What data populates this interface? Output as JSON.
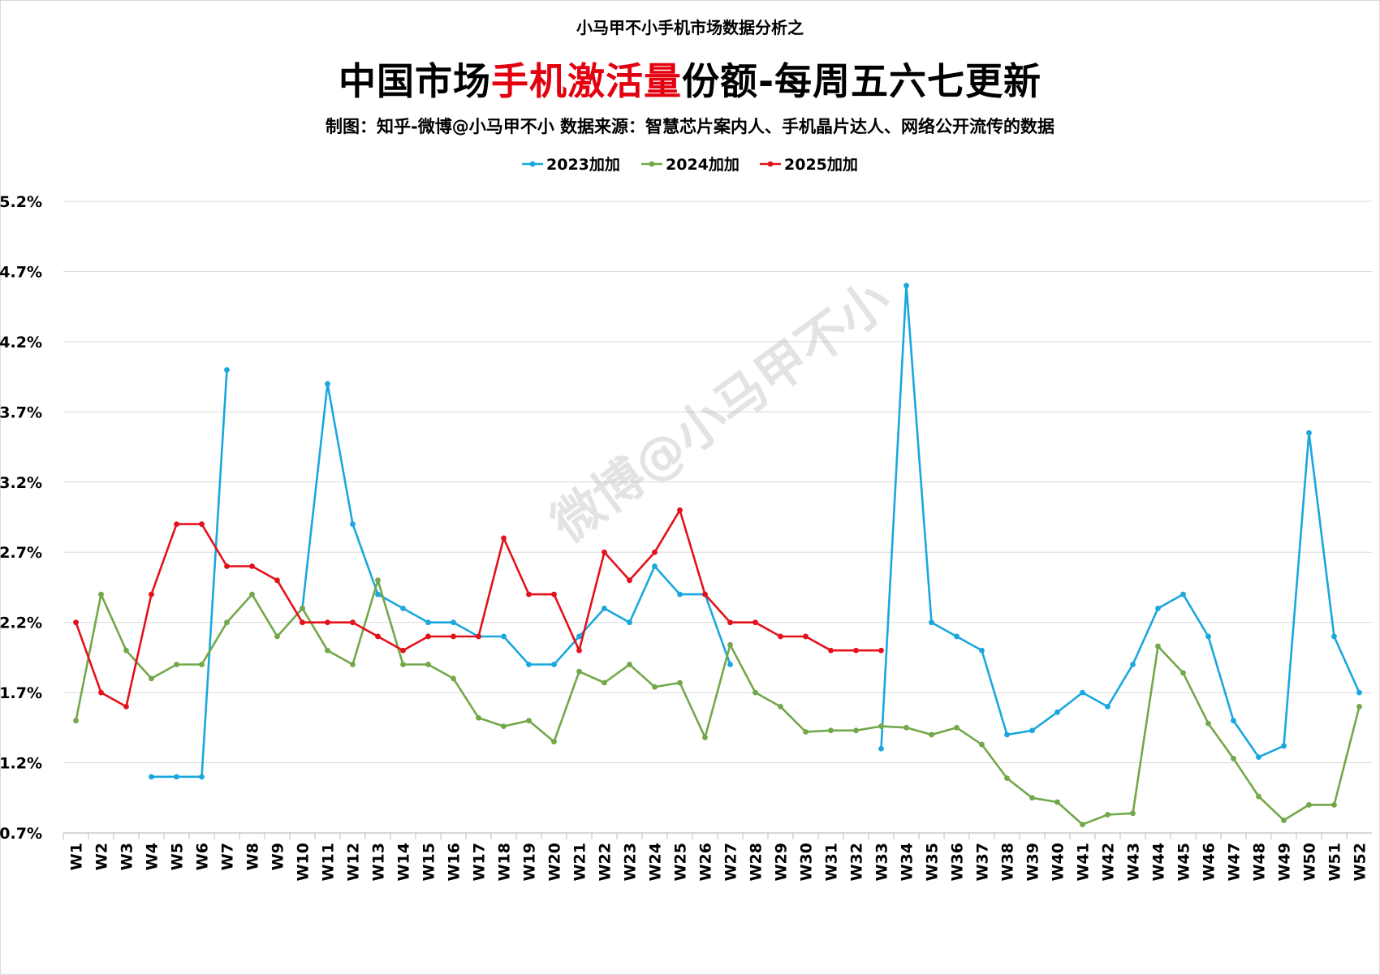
{
  "header": {
    "supertitle": "小马甲不小手机市场数据分析之",
    "title_part1": "中国市场",
    "title_highlight": "手机激活量",
    "title_part2": "份额-每周五六七更新",
    "credit": "制图：知乎-微博@小马甲不小  数据来源：智慧芯片案内人、手机晶片达人、网络公开流传的数据"
  },
  "watermark": "微博@小马甲不小",
  "colors": {
    "s2023": "#1aa7dd",
    "s2024": "#72a84a",
    "s2025": "#e3111b",
    "grid": "#d9d9d9"
  },
  "chart_data": {
    "type": "line",
    "title": "中国市场手机激活量份额-每周五六七更新",
    "ylim": [
      0.7,
      5.2
    ],
    "yticks": [
      "0.7%",
      "1.2%",
      "1.7%",
      "2.2%",
      "2.7%",
      "3.2%",
      "3.7%",
      "4.2%",
      "4.7%",
      "5.2%"
    ],
    "ytick_values": [
      0.7,
      1.2,
      1.7,
      2.2,
      2.7,
      3.2,
      3.7,
      4.2,
      4.7,
      5.2
    ],
    "grid": true,
    "legend_position": "top-center",
    "categories": [
      "W1",
      "W2",
      "W3",
      "W4",
      "W5",
      "W6",
      "W7",
      "W8",
      "W9",
      "W10",
      "W11",
      "W12",
      "W13",
      "W14",
      "W15",
      "W16",
      "W17",
      "W18",
      "W19",
      "W20",
      "W21",
      "W22",
      "W23",
      "W24",
      "W25",
      "W26",
      "W27",
      "W28",
      "W29",
      "W30",
      "W31",
      "W32",
      "W33",
      "W34",
      "W35",
      "W36",
      "W37",
      "W38",
      "W39",
      "W40",
      "W41",
      "W42",
      "W43",
      "W44",
      "W45",
      "W46",
      "W47",
      "W48",
      "W49",
      "W50",
      "W51",
      "W52"
    ],
    "series": [
      {
        "name": "2023加加",
        "color": "#1aa7dd",
        "values": [
          null,
          null,
          null,
          1.1,
          1.1,
          1.1,
          4.0,
          null,
          null,
          2.3,
          3.9,
          2.9,
          2.4,
          2.3,
          2.2,
          2.2,
          2.1,
          2.1,
          1.9,
          1.9,
          2.1,
          2.3,
          2.2,
          2.6,
          2.4,
          2.4,
          1.9,
          null,
          null,
          null,
          null,
          null,
          1.3,
          4.6,
          2.2,
          2.1,
          2.0,
          1.4,
          1.43,
          1.56,
          1.7,
          1.6,
          1.9,
          2.3,
          2.4,
          2.1,
          1.5,
          1.24,
          1.32,
          3.55,
          2.1,
          1.7
        ]
      },
      {
        "name": "2024加加",
        "color": "#72a84a",
        "values": [
          1.5,
          2.4,
          2.0,
          1.8,
          1.9,
          1.9,
          2.2,
          2.4,
          2.1,
          2.3,
          2.0,
          1.9,
          2.5,
          1.9,
          1.9,
          1.8,
          1.52,
          1.46,
          1.5,
          1.35,
          1.85,
          1.77,
          1.9,
          1.74,
          1.77,
          1.38,
          2.04,
          1.7,
          1.6,
          1.42,
          1.43,
          1.43,
          1.46,
          1.45,
          1.4,
          1.45,
          1.33,
          1.09,
          0.95,
          0.92,
          0.76,
          0.83,
          0.84,
          2.03,
          1.84,
          1.48,
          1.23,
          0.96,
          0.79,
          0.9,
          0.9,
          1.6
        ]
      },
      {
        "name": "2025加加",
        "color": "#e3111b",
        "values": [
          2.2,
          1.7,
          1.6,
          2.4,
          2.9,
          2.9,
          2.6,
          2.6,
          2.5,
          2.2,
          2.2,
          2.2,
          2.1,
          2.0,
          2.1,
          2.1,
          2.1,
          2.8,
          2.4,
          2.4,
          2.0,
          2.7,
          2.5,
          2.7,
          3.0,
          2.4,
          2.2,
          2.2,
          2.1,
          2.1,
          2.0,
          2.0,
          2.0,
          null,
          null,
          null,
          null,
          null,
          null,
          null,
          null,
          null,
          null,
          null,
          null,
          null,
          null,
          null,
          null,
          null,
          null,
          null
        ]
      }
    ]
  }
}
